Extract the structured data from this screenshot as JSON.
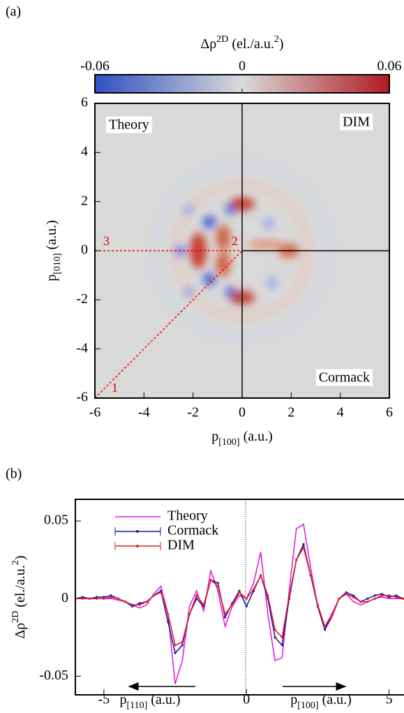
{
  "chart_data": [
    {
      "type": "heatmap",
      "panel_label": "(a)",
      "colorbar_label": [
        {
          "text": "Δρ"
        },
        {
          "text": "2D",
          "sup": true
        },
        {
          "text": " (el./a.u."
        },
        {
          "text": "2",
          "sup": true
        },
        {
          "text": ")"
        }
      ],
      "colorscale": [
        "#2f4fc4",
        "#dadada",
        "#b01a22"
      ],
      "clim": [
        -0.06,
        0.06
      ],
      "cticks": [
        -0.06,
        0,
        0.06
      ],
      "xlim": [
        -6,
        6
      ],
      "ylim": [
        -6,
        6
      ],
      "xticks": [
        -6,
        -4,
        -2,
        0,
        2,
        4,
        6
      ],
      "yticks": [
        -6,
        -4,
        -2,
        0,
        2,
        4,
        6
      ],
      "x_label": [
        {
          "text": "p"
        },
        {
          "text": "[100]",
          "sub": true
        },
        {
          "text": " (a.u.)"
        }
      ],
      "y_label": [
        {
          "text": "p"
        },
        {
          "text": "[010]",
          "sub": true
        },
        {
          "text": " (a.u.)"
        }
      ],
      "quadrant_labels": [
        "Theory",
        "DIM",
        "Cormack"
      ],
      "path_labels": [
        "1",
        "2",
        "3"
      ]
    },
    {
      "type": "line",
      "panel_label": "(b)",
      "x": [
        -6,
        -5.75,
        -5.5,
        -5.25,
        -5,
        -4.75,
        -4.5,
        -4.25,
        -4,
        -3.75,
        -3.5,
        -3.25,
        -3,
        -2.75,
        -2.5,
        -2.25,
        -2,
        -1.75,
        -1.5,
        -1.25,
        -1,
        -0.75,
        -0.5,
        -0.25,
        0,
        0.25,
        0.5,
        0.75,
        1,
        1.25,
        1.5,
        1.75,
        2,
        2.25,
        2.5,
        2.75,
        3,
        3.25,
        3.5,
        3.75,
        4,
        4.25,
        4.5,
        4.75,
        5,
        5.25,
        5.5
      ],
      "series": [
        {
          "name": "Theory",
          "color": "#e020e0",
          "values": [
            0,
            0,
            0,
            0,
            0,
            0,
            -0.001,
            -0.002,
            -0.004,
            -0.006,
            -0.004,
            0.003,
            0.008,
            -0.01,
            -0.055,
            -0.04,
            -0.005,
            0.005,
            -0.008,
            0.018,
            0.005,
            -0.018,
            -0.005,
            0.002,
            0,
            0.01,
            0.03,
            -0.01,
            -0.04,
            -0.038,
            0.005,
            0.045,
            0.048,
            0.02,
            -0.005,
            -0.02,
            -0.012,
            0,
            0.003,
            -0.002,
            -0.004,
            -0.002,
            0,
            0.001,
            0,
            0,
            0
          ]
        },
        {
          "name": "Cormack",
          "color": "#1a1aa8",
          "values": [
            0,
            0.001,
            0,
            0.001,
            0.001,
            0.002,
            0,
            -0.002,
            -0.005,
            -0.003,
            -0.002,
            0.002,
            0.005,
            -0.015,
            -0.035,
            -0.03,
            -0.01,
            0,
            -0.005,
            0.012,
            0.01,
            -0.012,
            -0.003,
            0.005,
            -0.005,
            0.005,
            0.015,
            0,
            -0.025,
            -0.03,
            0,
            0.025,
            0.035,
            0.015,
            -0.005,
            -0.02,
            -0.01,
            0,
            0.004,
            0.002,
            -0.002,
            0,
            0.002,
            0.003,
            0.001,
            0.002,
            0
          ]
        },
        {
          "name": "DIM",
          "color": "#e02020",
          "values": [
            0,
            0,
            0,
            0,
            0,
            0.001,
            0,
            -0.002,
            -0.004,
            -0.004,
            -0.002,
            0.002,
            0.004,
            -0.01,
            -0.03,
            -0.028,
            -0.01,
            0.002,
            -0.004,
            0.012,
            0.008,
            -0.01,
            -0.004,
            0.004,
            0,
            0.006,
            0.015,
            0.002,
            -0.02,
            -0.025,
            0.002,
            0.025,
            0.033,
            0.015,
            -0.004,
            -0.018,
            -0.01,
            0,
            0.003,
            0.001,
            -0.002,
            -0.002,
            0,
            0.002,
            0.002,
            0.001,
            0
          ]
        }
      ],
      "xlim": [
        -6,
        5.5
      ],
      "ylim": [
        -0.062,
        0.064
      ],
      "xticks": [
        -5,
        0,
        5
      ],
      "yticks": [
        -0.05,
        0,
        0.05
      ],
      "y_label": [
        {
          "text": "Δρ"
        },
        {
          "text": "2D",
          "sup": true
        },
        {
          "text": " (el./a.u."
        },
        {
          "text": "2",
          "sup": true
        },
        {
          "text": ")"
        }
      ],
      "direction_labels": [
        [
          {
            "text": "p"
          },
          {
            "text": "[110]",
            "sub": true
          },
          {
            "text": " (a.u.)"
          }
        ],
        [
          {
            "text": "p"
          },
          {
            "text": "[100]",
            "sub": true
          },
          {
            "text": " (a.u.)"
          }
        ]
      ]
    }
  ]
}
